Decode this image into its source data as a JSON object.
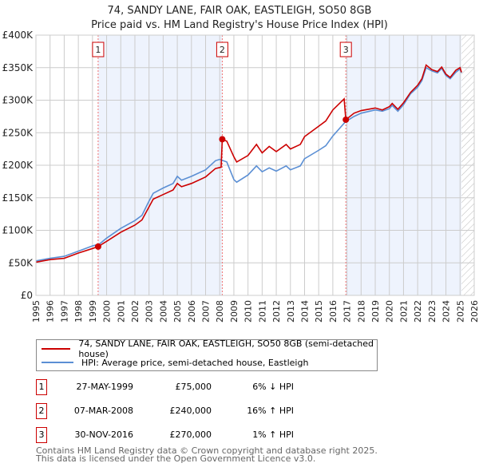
{
  "title": [
    "74, SANDY LANE, FAIR OAK, EASTLEIGH, SO50 8GB",
    "Price paid vs. HM Land Registry's House Price Index (HPI)"
  ],
  "colors": {
    "property": "#cc0000",
    "hpi": "#5b8fd4",
    "band": "#eef3fd",
    "grid": "#cccccc"
  },
  "chart_data": {
    "type": "line",
    "xlim": [
      1995,
      2026
    ],
    "ylim": [
      0,
      400000
    ],
    "yticks": [
      {
        "v": 0,
        "label": "£0"
      },
      {
        "v": 50000,
        "label": "£50K"
      },
      {
        "v": 100000,
        "label": "£100K"
      },
      {
        "v": 150000,
        "label": "£150K"
      },
      {
        "v": 200000,
        "label": "£200K"
      },
      {
        "v": 250000,
        "label": "£250K"
      },
      {
        "v": 300000,
        "label": "£300K"
      },
      {
        "v": 350000,
        "label": "£350K"
      },
      {
        "v": 400000,
        "label": "£400K"
      }
    ],
    "xticks": [
      "1995",
      "1996",
      "1997",
      "1998",
      "1999",
      "2000",
      "2001",
      "2002",
      "2003",
      "2004",
      "2005",
      "2006",
      "2007",
      "2008",
      "2009",
      "2010",
      "2011",
      "2012",
      "2013",
      "2014",
      "2015",
      "2016",
      "2017",
      "2018",
      "2019",
      "2020",
      "2021",
      "2022",
      "2023",
      "2024",
      "2025",
      "2026"
    ],
    "shaded_ranges": [
      [
        1999.4,
        2008.18
      ],
      [
        2016.92,
        2025.1
      ]
    ],
    "forecast_hatch_from": 2025.1,
    "series": [
      {
        "name": "74, SANDY LANE, FAIR OAK, EASTLEIGH, SO50 8GB (semi-detached house)",
        "color": "#cc0000",
        "points": [
          [
            1995,
            51000
          ],
          [
            1996,
            55000
          ],
          [
            1997,
            57000
          ],
          [
            1998,
            65000
          ],
          [
            1999,
            72000
          ],
          [
            1999.4,
            75000
          ],
          [
            2000,
            83000
          ],
          [
            2001,
            97000
          ],
          [
            2002,
            108000
          ],
          [
            2002.5,
            116000
          ],
          [
            2003,
            136000
          ],
          [
            2003.3,
            148000
          ],
          [
            2004,
            155000
          ],
          [
            2004.7,
            162000
          ],
          [
            2005,
            172000
          ],
          [
            2005.3,
            167000
          ],
          [
            2006,
            172000
          ],
          [
            2007,
            182000
          ],
          [
            2007.7,
            195000
          ],
          [
            2008.1,
            197000
          ],
          [
            2008.18,
            240000
          ],
          [
            2008.5,
            237000
          ],
          [
            2009,
            213000
          ],
          [
            2009.2,
            205000
          ],
          [
            2010,
            215000
          ],
          [
            2010.6,
            232000
          ],
          [
            2011,
            219000
          ],
          [
            2011.5,
            229000
          ],
          [
            2012,
            221000
          ],
          [
            2012.7,
            232000
          ],
          [
            2013,
            225000
          ],
          [
            2013.7,
            232000
          ],
          [
            2014,
            244000
          ],
          [
            2015,
            260000
          ],
          [
            2015.5,
            268000
          ],
          [
            2016,
            285000
          ],
          [
            2016.8,
            302000
          ],
          [
            2016.92,
            270000
          ],
          [
            2017.5,
            280000
          ],
          [
            2018,
            284000
          ],
          [
            2019,
            288000
          ],
          [
            2019.5,
            285000
          ],
          [
            2020,
            290000
          ],
          [
            2020.2,
            295000
          ],
          [
            2020.6,
            286000
          ],
          [
            2021,
            296000
          ],
          [
            2021.5,
            312000
          ],
          [
            2022,
            323000
          ],
          [
            2022.3,
            333000
          ],
          [
            2022.6,
            354000
          ],
          [
            2023,
            347000
          ],
          [
            2023.4,
            344000
          ],
          [
            2023.7,
            351000
          ],
          [
            2024,
            340000
          ],
          [
            2024.3,
            335000
          ],
          [
            2024.7,
            346000
          ],
          [
            2025,
            350000
          ],
          [
            2025.1,
            343000
          ]
        ]
      },
      {
        "name": "HPI: Average price, semi-detached house, Eastleigh",
        "color": "#5b8fd4",
        "points": [
          [
            1995,
            53000
          ],
          [
            1996,
            57000
          ],
          [
            1997,
            60000
          ],
          [
            1998,
            68000
          ],
          [
            1999,
            76000
          ],
          [
            1999.5,
            79000
          ],
          [
            2000,
            88000
          ],
          [
            2001,
            103000
          ],
          [
            2002,
            115000
          ],
          [
            2002.5,
            123000
          ],
          [
            2003,
            145000
          ],
          [
            2003.3,
            157000
          ],
          [
            2004,
            165000
          ],
          [
            2004.7,
            172000
          ],
          [
            2005,
            183000
          ],
          [
            2005.3,
            177000
          ],
          [
            2006,
            183000
          ],
          [
            2007,
            193000
          ],
          [
            2007.7,
            207000
          ],
          [
            2008,
            209000
          ],
          [
            2008.5,
            205000
          ],
          [
            2009,
            178000
          ],
          [
            2009.2,
            174000
          ],
          [
            2010,
            185000
          ],
          [
            2010.6,
            199000
          ],
          [
            2011,
            190000
          ],
          [
            2011.5,
            196000
          ],
          [
            2012,
            191000
          ],
          [
            2012.7,
            199000
          ],
          [
            2013,
            193000
          ],
          [
            2013.7,
            199000
          ],
          [
            2014,
            210000
          ],
          [
            2015,
            223000
          ],
          [
            2015.5,
            230000
          ],
          [
            2016,
            245000
          ],
          [
            2016.9,
            267000
          ],
          [
            2017.5,
            275000
          ],
          [
            2018,
            280000
          ],
          [
            2019,
            285000
          ],
          [
            2019.5,
            283000
          ],
          [
            2020,
            287000
          ],
          [
            2020.2,
            292000
          ],
          [
            2020.6,
            283000
          ],
          [
            2021,
            293000
          ],
          [
            2021.5,
            310000
          ],
          [
            2022,
            320000
          ],
          [
            2022.3,
            330000
          ],
          [
            2022.6,
            350000
          ],
          [
            2023,
            345000
          ],
          [
            2023.4,
            342000
          ],
          [
            2023.7,
            349000
          ],
          [
            2024,
            338000
          ],
          [
            2024.3,
            333000
          ],
          [
            2024.7,
            343000
          ],
          [
            2025,
            348000
          ],
          [
            2025.1,
            342000
          ]
        ]
      }
    ],
    "sales": [
      {
        "n": "1",
        "x": 1999.4,
        "y": 75000
      },
      {
        "n": "2",
        "x": 2008.18,
        "y": 240000
      },
      {
        "n": "3",
        "x": 2016.92,
        "y": 270000
      }
    ]
  },
  "legend": [
    "74, SANDY LANE, FAIR OAK, EASTLEIGH, SO50 8GB (semi-detached house)",
    "HPI: Average price, semi-detached house, Eastleigh"
  ],
  "transactions": [
    {
      "n": "1",
      "date": "27-MAY-1999",
      "price": "£75,000",
      "hpi": "6% ↓ HPI"
    },
    {
      "n": "2",
      "date": "07-MAR-2008",
      "price": "£240,000",
      "hpi": "16% ↑ HPI"
    },
    {
      "n": "3",
      "date": "30-NOV-2016",
      "price": "£270,000",
      "hpi": "1% ↑ HPI"
    }
  ],
  "footer": [
    "Contains HM Land Registry data © Crown copyright and database right 2025.",
    "This data is licensed under the Open Government Licence v3.0."
  ]
}
